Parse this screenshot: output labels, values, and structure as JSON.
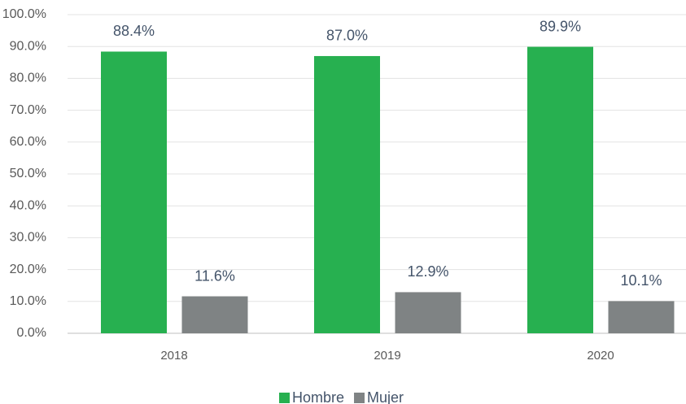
{
  "chart_data": {
    "type": "bar",
    "categories": [
      "2018",
      "2019",
      "2020"
    ],
    "series": [
      {
        "name": "Hombre",
        "color": "#27b050",
        "values": [
          88.4,
          87.0,
          89.9
        ],
        "value_labels": [
          "88.4%",
          "87.0%",
          "89.9%"
        ]
      },
      {
        "name": "Mujer",
        "color": "#7f8384",
        "values": [
          11.6,
          12.9,
          10.1
        ],
        "value_labels": [
          "11.6%",
          "12.9%",
          "10.1%"
        ]
      }
    ],
    "ylim": [
      0,
      100
    ],
    "yticks": [
      {
        "value": 0,
        "label": "0.0%"
      },
      {
        "value": 10,
        "label": "10.0%"
      },
      {
        "value": 20,
        "label": "20.0%"
      },
      {
        "value": 30,
        "label": "30.0%"
      },
      {
        "value": 40,
        "label": "40.0%"
      },
      {
        "value": 50,
        "label": "50.0%"
      },
      {
        "value": 60,
        "label": "60.0%"
      },
      {
        "value": 70,
        "label": "70.0%"
      },
      {
        "value": 80,
        "label": "80.0%"
      },
      {
        "value": 90,
        "label": "90.0%"
      },
      {
        "value": 100,
        "label": "100.0%"
      }
    ],
    "grid": true,
    "legend": "bottom"
  }
}
